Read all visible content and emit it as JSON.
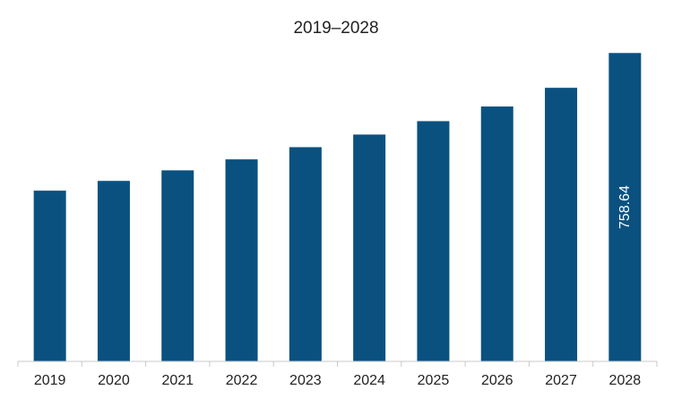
{
  "chart_data": {
    "type": "bar",
    "title": "2019–2028",
    "xlabel": "",
    "ylabel": "",
    "categories": [
      "2019",
      "2020",
      "2021",
      "2022",
      "2023",
      "2024",
      "2025",
      "2026",
      "2027",
      "2028"
    ],
    "values": [
      420.0,
      444.0,
      470.0,
      497.0,
      527.0,
      558.0,
      591.0,
      627.0,
      673.0,
      758.64
    ],
    "data_labels": [
      "",
      "",
      "",
      "",
      "",
      "",
      "",
      "",
      "",
      "758.64"
    ],
    "ylim": [
      0,
      845
    ],
    "grid": false,
    "legend": "none",
    "bar_color": "#0a5180",
    "label_color": "#ffffff",
    "axis_color": "#c8c8c8",
    "text_color": "#222222"
  }
}
